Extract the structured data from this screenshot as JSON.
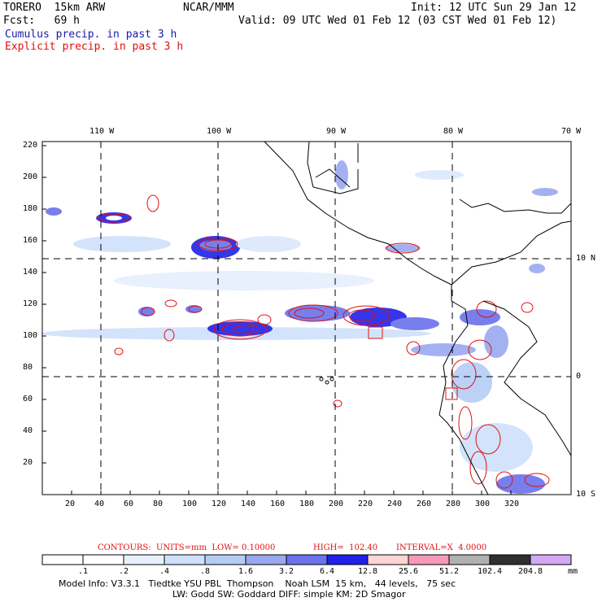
{
  "header": {
    "model": "TORERO  15km ARW",
    "org": "NCAR/MMM",
    "init": "Init: 12 UTC Sun 29 Jan 12",
    "fcst": "Fcst:   69 h",
    "valid": "Valid: 09 UTC Wed 01 Feb 12 (03 CST Wed 01 Feb 12)",
    "legend_cumulus": "Cumulus precip. in past 3 h",
    "legend_explicit": "Explicit precip. in past 3 h"
  },
  "map": {
    "top_lon_labels": [
      "110 W",
      "100 W",
      "90 W",
      "80 W",
      "70 W"
    ],
    "right_lat_labels": [
      "10 N",
      "0",
      "10 S"
    ],
    "x_ticks": [
      "20",
      "40",
      "60",
      "80",
      "100",
      "120",
      "140",
      "160",
      "180",
      "200",
      "220",
      "240",
      "260",
      "280",
      "300",
      "320"
    ],
    "y_ticks": [
      "20",
      "40",
      "60",
      "80",
      "100",
      "120",
      "140",
      "160",
      "180",
      "200",
      "220"
    ],
    "grid_dashed": true
  },
  "contours": {
    "label": "CONTOURS:  UNITS=mm  LOW= 0.10000",
    "high": "HIGH=  102.40",
    "interval": "INTERVAL=X  4.0000"
  },
  "colorbar": {
    "labels": [
      ".1",
      ".2",
      ".4",
      ".8",
      "1.6",
      "3.2",
      "6.4",
      "12.8",
      "25.6",
      "51.2",
      "102.4",
      "204.8"
    ],
    "unit": "mm",
    "colors": [
      "#ffffff",
      "#ffffff",
      "#e8f0ff",
      "#cfe0fb",
      "#b4cdf4",
      "#9aa8f0",
      "#6a72ec",
      "#2020e8",
      "#ffd4d4",
      "#f59ab8",
      "#b0b0b0",
      "#303030",
      "#d4a8f4"
    ]
  },
  "footer": {
    "line1": "Model Info: V3.3.1   Tiedtke YSU PBL  Thompson    Noah LSM  15 km,   44 levels,   75 sec",
    "line2": "LW: Godd SW: Goddard DIFF: simple KM: 2D Smagor"
  }
}
